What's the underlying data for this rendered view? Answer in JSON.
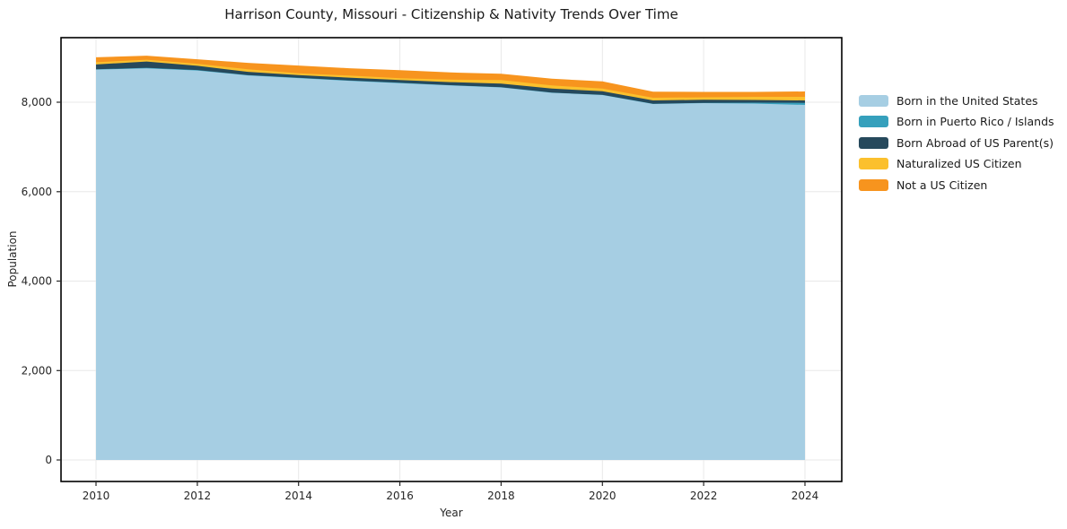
{
  "title": "Harrison County, Missouri - Citizenship & Nativity Trends Over Time",
  "chart_data": {
    "type": "area",
    "stacked": true,
    "title": "Harrison County, Missouri - Citizenship & Nativity Trends Over Time",
    "xlabel": "Year",
    "ylabel": "Population",
    "grid": true,
    "legend_position": "right-outside",
    "x": [
      2010,
      2011,
      2012,
      2013,
      2014,
      2015,
      2016,
      2017,
      2018,
      2019,
      2020,
      2021,
      2022,
      2023,
      2024
    ],
    "xticks": [
      2010,
      2012,
      2014,
      2016,
      2018,
      2020,
      2022,
      2024
    ],
    "yticks": [
      0,
      2000,
      4000,
      6000,
      8000
    ],
    "ytick_labels": [
      "0",
      "2,000",
      "4,000",
      "6,000",
      "8,000"
    ],
    "xlim": [
      2009.3,
      2024.73
    ],
    "ylim": [
      -480,
      9445
    ],
    "colors": {
      "grid": "#e8e8e8",
      "spine": "#000000",
      "tick_text": "#262626",
      "background": "#ffffff"
    },
    "series": [
      {
        "name": "Born in the United States",
        "color": "#a6cee3",
        "values": [
          8730,
          8755,
          8710,
          8600,
          8540,
          8480,
          8425,
          8375,
          8330,
          8210,
          8160,
          7960,
          7980,
          7970,
          7940
        ]
      },
      {
        "name": "Born in Puerto Rico / Islands",
        "color": "#35a0bc",
        "values": [
          5,
          15,
          10,
          5,
          5,
          5,
          10,
          5,
          5,
          5,
          5,
          5,
          5,
          20,
          45
        ]
      },
      {
        "name": "Born Abroad of US Parent(s)",
        "color": "#26495c",
        "values": [
          110,
          140,
          95,
          75,
          60,
          65,
          60,
          70,
          80,
          90,
          80,
          75,
          70,
          60,
          55
        ]
      },
      {
        "name": "Naturalized US Citizen",
        "color": "#fbc02d",
        "values": [
          50,
          40,
          45,
          55,
          40,
          45,
          40,
          55,
          80,
          70,
          60,
          60,
          55,
          70,
          80
        ]
      },
      {
        "name": "Not a US Citizen",
        "color": "#f7941e",
        "values": [
          110,
          90,
          100,
          145,
          175,
          165,
          180,
          160,
          140,
          150,
          160,
          135,
          120,
          110,
          120
        ]
      }
    ]
  }
}
